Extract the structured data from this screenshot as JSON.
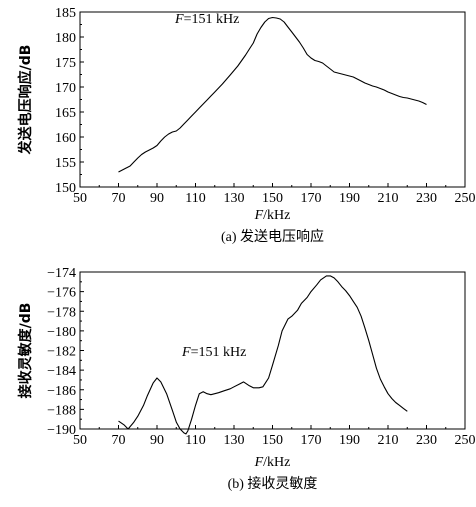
{
  "chart_data": [
    {
      "type": "line",
      "caption": "(a) 发送电压响应",
      "xlabel": "F/kHz",
      "ylabel": "发送电压响应/dB",
      "annotation": "F=151 kHz",
      "xlim": [
        50,
        250
      ],
      "ylim": [
        150,
        185
      ],
      "xticks": [
        "50",
        "70",
        "90",
        "110",
        "130",
        "150",
        "170",
        "190",
        "210",
        "230",
        "250"
      ],
      "yticks": [
        "150",
        "155",
        "160",
        "165",
        "170",
        "175",
        "180",
        "185"
      ],
      "grid": false,
      "x": [
        70,
        74,
        76,
        78,
        80,
        82,
        84,
        86,
        88,
        90,
        92,
        94,
        96,
        98,
        100,
        102,
        104,
        106,
        108,
        110,
        112,
        114,
        116,
        118,
        120,
        122,
        124,
        126,
        128,
        130,
        132,
        134,
        136,
        138,
        140,
        142,
        144,
        146,
        148,
        150,
        152,
        154,
        156,
        158,
        160,
        162,
        164,
        166,
        168,
        170,
        172,
        174,
        176,
        178,
        180,
        182,
        184,
        186,
        188,
        190,
        192,
        194,
        196,
        198,
        200,
        202,
        204,
        206,
        208,
        210,
        212,
        214,
        216,
        218,
        220,
        222,
        224,
        226,
        228,
        230
      ],
      "y": [
        153.0,
        153.8,
        154.2,
        155.0,
        155.8,
        156.5,
        157.0,
        157.4,
        157.8,
        158.3,
        159.2,
        160.0,
        160.6,
        161.0,
        161.2,
        161.8,
        162.6,
        163.4,
        164.2,
        165.0,
        165.8,
        166.6,
        167.4,
        168.2,
        169.0,
        169.8,
        170.6,
        171.5,
        172.4,
        173.3,
        174.2,
        175.3,
        176.4,
        177.6,
        178.8,
        180.6,
        181.9,
        183.0,
        183.7,
        183.9,
        183.8,
        183.6,
        183.0,
        182.0,
        181.0,
        180.0,
        179.0,
        177.8,
        176.5,
        175.8,
        175.3,
        175.1,
        174.8,
        174.2,
        173.6,
        173.0,
        172.8,
        172.6,
        172.4,
        172.2,
        172.0,
        171.6,
        171.2,
        170.8,
        170.5,
        170.2,
        170.0,
        169.7,
        169.4,
        169.0,
        168.7,
        168.4,
        168.1,
        167.9,
        167.8,
        167.6,
        167.4,
        167.2,
        166.9,
        166.5
      ]
    },
    {
      "type": "line",
      "caption": "(b) 接收灵敏度",
      "xlabel": "F/kHz",
      "ylabel": "接收灵敏度/dB",
      "annotation": "F=151 kHz",
      "xlim": [
        50,
        250
      ],
      "ylim": [
        -190,
        -174
      ],
      "xticks": [
        "50",
        "70",
        "90",
        "110",
        "130",
        "150",
        "170",
        "190",
        "210",
        "230",
        "250"
      ],
      "yticks": [
        "−174",
        "−176",
        "−178",
        "−180",
        "−182",
        "−184",
        "−186",
        "−188",
        "−190"
      ],
      "grid": false,
      "x": [
        70,
        73,
        75,
        78,
        80,
        83,
        85,
        88,
        90,
        92,
        95,
        98,
        100,
        102,
        104,
        105,
        106,
        108,
        110,
        112,
        114,
        116,
        118,
        120,
        122,
        125,
        128,
        130,
        133,
        135,
        138,
        140,
        143,
        145,
        148,
        150,
        153,
        155,
        158,
        160,
        163,
        165,
        168,
        170,
        173,
        175,
        178,
        180,
        182,
        184,
        186,
        188,
        190,
        192,
        194,
        196,
        198,
        200,
        202,
        204,
        206,
        208,
        210,
        212,
        214,
        216,
        218,
        220
      ],
      "y": [
        -189.2,
        -189.6,
        -190.0,
        -189.3,
        -188.7,
        -187.6,
        -186.6,
        -185.3,
        -184.8,
        -185.2,
        -186.4,
        -188.1,
        -189.3,
        -190.0,
        -190.4,
        -190.5,
        -190.2,
        -189.0,
        -187.6,
        -186.4,
        -186.2,
        -186.4,
        -186.5,
        -186.4,
        -186.3,
        -186.1,
        -185.9,
        -185.7,
        -185.4,
        -185.2,
        -185.6,
        -185.8,
        -185.8,
        -185.7,
        -184.8,
        -183.5,
        -181.5,
        -180.0,
        -178.8,
        -178.5,
        -177.9,
        -177.2,
        -176.6,
        -176.0,
        -175.3,
        -174.8,
        -174.4,
        -174.4,
        -174.6,
        -175.0,
        -175.5,
        -175.9,
        -176.4,
        -177.0,
        -177.6,
        -178.5,
        -179.7,
        -181.0,
        -182.4,
        -183.8,
        -184.9,
        -185.7,
        -186.4,
        -186.9,
        -187.3,
        -187.6,
        -187.9,
        -188.2
      ]
    }
  ]
}
